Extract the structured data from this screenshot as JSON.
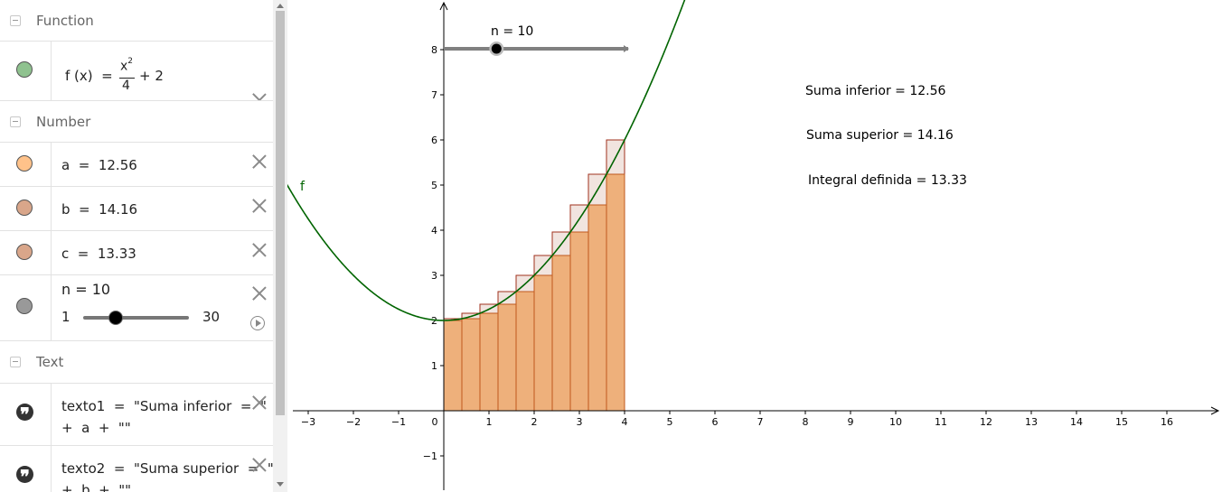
{
  "algebra": {
    "groups": {
      "function": "Function",
      "number": "Number",
      "text": "Text"
    },
    "function_row": {
      "lhs": "f (x)  =",
      "num": "x",
      "exp": "2",
      "den": "4",
      "plus": "+ 2",
      "color": "#8fc28f"
    },
    "numbers": [
      {
        "expr": "a  =  12.56",
        "color": "#ffc28a"
      },
      {
        "expr": "b  =  14.16",
        "color": "#d9a68a"
      },
      {
        "expr": "c  =  13.33",
        "color": "#d9a68a"
      }
    ],
    "slider_row": {
      "expr": "n = 10",
      "min": "1",
      "max": "30",
      "value": 10,
      "color": "#999999"
    },
    "texts": [
      {
        "line1": "texto1  =  \"Suma inferior  =  \"",
        "line2": "+  a  +  \"\""
      },
      {
        "line1": "texto2  =  \"Suma superior  =  \"",
        "line2": "+  b  +  \"\""
      }
    ]
  },
  "graphics": {
    "slider_label": "n = 10",
    "slider": {
      "min": 1,
      "max": 30,
      "value": 10
    },
    "function_label": "f",
    "function": {
      "a": 0.25,
      "b": 0
    },
    "riemann": {
      "start": 0,
      "end": 4,
      "n": 10
    },
    "texts": [
      "Suma inferior = 12.56",
      "Suma superior = 14.16",
      "Integral definida = 13.33"
    ],
    "x_ticks": [
      "−3",
      "−2",
      "−1",
      "0",
      "1",
      "2",
      "3",
      "4",
      "5",
      "6",
      "7",
      "8",
      "9",
      "10",
      "11",
      "12",
      "13",
      "14",
      "15",
      "16"
    ],
    "y_ticks": [
      "−1",
      "1",
      "2",
      "3",
      "4",
      "5",
      "6",
      "7",
      "8"
    ],
    "colors": {
      "curve": "#006400",
      "lower_fill": "#eeb07b",
      "lower_stroke": "#c0591e",
      "upper_fill": "#f1e4df",
      "upper_stroke": "#a0321e"
    }
  }
}
